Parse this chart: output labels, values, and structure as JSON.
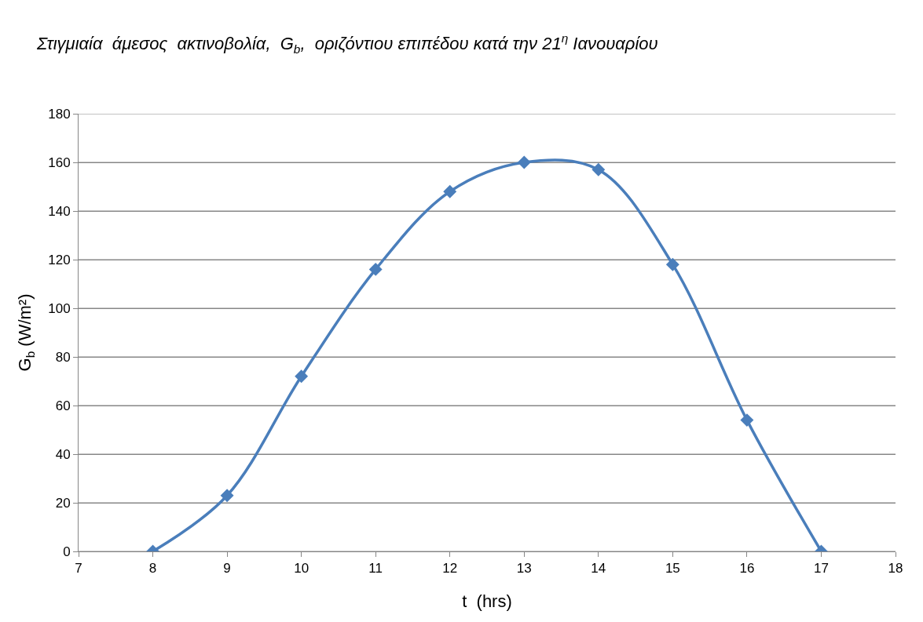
{
  "chart_data": {
    "type": "line",
    "title": "Στιγμιαία  άμεσος  ακτινοβολία,  G$_{b}$,  οριζόντιου επιπέδου κατά την 21$^{η}$ Ιανουαρίου",
    "xlabel": "t  (hrs)",
    "ylabel": "G$_{b}$ (W/m²)",
    "x": [
      8,
      9,
      10,
      11,
      12,
      13,
      14,
      15,
      16,
      17
    ],
    "series": [
      {
        "color": "#4a7ebb",
        "values": [
          0,
          23,
          72,
          116,
          148,
          160,
          157,
          118,
          54,
          0
        ]
      }
    ],
    "xlim": [
      7,
      18
    ],
    "xticks": [
      7,
      8,
      9,
      10,
      11,
      12,
      13,
      14,
      15,
      16,
      17,
      18
    ],
    "ylim": [
      0,
      180
    ],
    "yticks": [
      0,
      20,
      40,
      60,
      80,
      100,
      120,
      140,
      160,
      180
    ],
    "grid": "y",
    "marker": "diamond",
    "line_style": "solid"
  }
}
